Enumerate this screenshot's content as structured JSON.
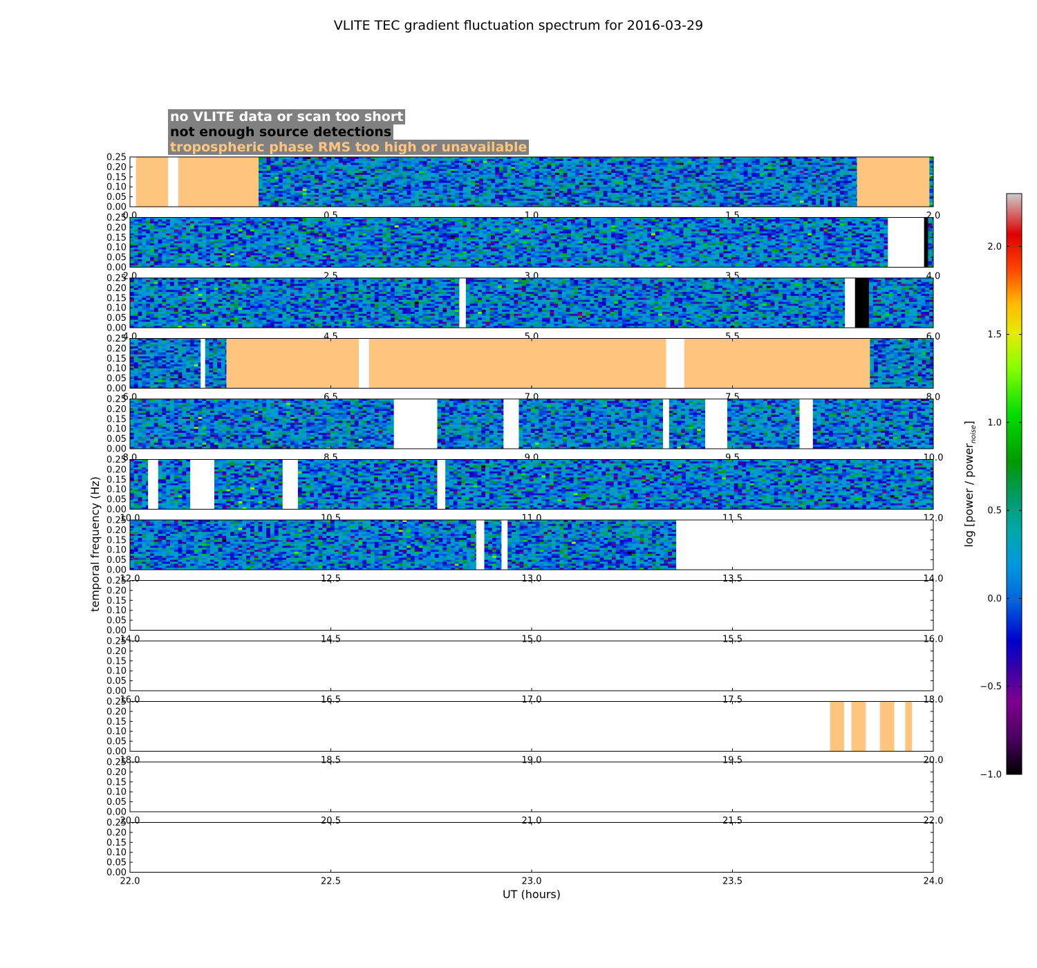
{
  "chart_data": {
    "type": "heatmap",
    "title": "VLITE TEC gradient fluctuation spectrum for 2016-03-29",
    "xlabel": "UT (hours)",
    "ylabel": "temporal frequency (Hz)",
    "ylim": [
      0.0,
      0.25
    ],
    "yticks": [
      "0.00",
      "0.05",
      "0.10",
      "0.15",
      "0.20",
      "0.25"
    ],
    "hours_per_panel": 2,
    "panels": [
      {
        "xlim": [
          0.0,
          2.0
        ],
        "xticks": [
          "0.0",
          "0.5",
          "1.0",
          "1.5",
          "2.0"
        ],
        "data_ranges": [
          [
            0.32,
            1.81
          ],
          [
            1.99,
            2.0
          ]
        ],
        "flags": [
          {
            "category": "no_data",
            "start": 0.0,
            "end": 0.015
          },
          {
            "category": "tropo",
            "start": 0.015,
            "end": 0.095
          },
          {
            "category": "no_data",
            "start": 0.095,
            "end": 0.12
          },
          {
            "category": "tropo",
            "start": 0.12,
            "end": 0.32
          },
          {
            "category": "tropo",
            "start": 1.81,
            "end": 1.99
          }
        ]
      },
      {
        "xlim": [
          2.0,
          4.0
        ],
        "xticks": [
          "2.0",
          "2.5",
          "3.0",
          "3.5",
          "4.0"
        ],
        "data_ranges": [
          [
            2.0,
            3.887
          ],
          [
            3.987,
            4.0
          ]
        ],
        "flags": [
          {
            "category": "no_data",
            "start": 3.887,
            "end": 3.977
          },
          {
            "category": "few_sources",
            "start": 3.977,
            "end": 3.987
          }
        ]
      },
      {
        "xlim": [
          4.0,
          6.0
        ],
        "xticks": [
          "4.0",
          "4.5",
          "5.0",
          "5.5",
          "6.0"
        ],
        "data_ranges": [
          [
            4.0,
            4.82
          ],
          [
            4.836,
            5.78
          ],
          [
            5.84,
            6.0
          ]
        ],
        "flags": [
          {
            "category": "no_data",
            "start": 4.82,
            "end": 4.836
          },
          {
            "category": "no_data",
            "start": 5.78,
            "end": 5.805
          },
          {
            "category": "few_sources",
            "start": 5.805,
            "end": 5.84
          }
        ]
      },
      {
        "xlim": [
          6.0,
          8.0
        ],
        "xticks": [
          "6.0",
          "6.5",
          "7.0",
          "7.5",
          "8.0"
        ],
        "data_ranges": [
          [
            6.0,
            6.176
          ],
          [
            6.187,
            6.24
          ],
          [
            7.842,
            8.0
          ]
        ],
        "flags": [
          {
            "category": "no_data",
            "start": 6.176,
            "end": 6.187
          },
          {
            "category": "tropo",
            "start": 6.24,
            "end": 6.57
          },
          {
            "category": "no_data",
            "start": 6.57,
            "end": 6.595
          },
          {
            "category": "tropo",
            "start": 6.595,
            "end": 7.335
          },
          {
            "category": "no_data",
            "start": 7.335,
            "end": 7.38
          },
          {
            "category": "tropo",
            "start": 7.38,
            "end": 7.842
          }
        ]
      },
      {
        "xlim": [
          8.0,
          10.0
        ],
        "xticks": [
          "8.0",
          "8.5",
          "9.0",
          "9.5",
          "10.0"
        ],
        "data_ranges": [
          [
            8.0,
            8.657
          ],
          [
            8.765,
            8.93
          ],
          [
            8.968,
            9.327
          ],
          [
            9.342,
            9.432
          ],
          [
            9.487,
            9.667
          ],
          [
            9.7,
            10.0
          ]
        ],
        "flags": [
          {
            "category": "no_data",
            "start": 8.657,
            "end": 8.765
          },
          {
            "category": "no_data",
            "start": 8.93,
            "end": 8.968
          },
          {
            "category": "no_data",
            "start": 9.327,
            "end": 9.342
          },
          {
            "category": "no_data",
            "start": 9.432,
            "end": 9.487
          },
          {
            "category": "no_data",
            "start": 9.667,
            "end": 9.7
          }
        ]
      },
      {
        "xlim": [
          10.0,
          12.0
        ],
        "xticks": [
          "10.0",
          "10.5",
          "11.0",
          "11.5",
          "12.0"
        ],
        "data_ranges": [
          [
            10.0,
            10.045
          ],
          [
            10.07,
            10.15
          ],
          [
            10.21,
            10.38
          ],
          [
            10.418,
            10.765
          ],
          [
            10.785,
            12.0
          ]
        ],
        "flags": [
          {
            "category": "no_data",
            "start": 10.045,
            "end": 10.07
          },
          {
            "category": "no_data",
            "start": 10.15,
            "end": 10.21
          },
          {
            "category": "no_data",
            "start": 10.38,
            "end": 10.418
          },
          {
            "category": "no_data",
            "start": 10.765,
            "end": 10.785
          }
        ]
      },
      {
        "xlim": [
          12.0,
          14.0
        ],
        "xticks": [
          "12.0",
          "12.5",
          "13.0",
          "13.5",
          "14.0"
        ],
        "data_ranges": [
          [
            12.0,
            12.862
          ],
          [
            12.882,
            12.925
          ],
          [
            12.94,
            13.36
          ]
        ],
        "flags": [
          {
            "category": "no_data",
            "start": 12.862,
            "end": 12.882
          },
          {
            "category": "no_data",
            "start": 12.925,
            "end": 12.94
          },
          {
            "category": "no_data",
            "start": 13.36,
            "end": 14.0
          }
        ]
      },
      {
        "xlim": [
          14.0,
          16.0
        ],
        "xticks": [
          "14.0",
          "14.5",
          "15.0",
          "15.5",
          "16.0"
        ],
        "data_ranges": [],
        "flags": []
      },
      {
        "xlim": [
          16.0,
          18.0
        ],
        "xticks": [
          "16.0",
          "16.5",
          "17.0",
          "17.5",
          "18.0"
        ],
        "data_ranges": [],
        "flags": []
      },
      {
        "xlim": [
          18.0,
          20.0
        ],
        "xticks": [
          "18.0",
          "18.5",
          "19.0",
          "19.5",
          "20.0"
        ],
        "data_ranges": [],
        "flags": [
          {
            "category": "tropo",
            "start": 19.743,
            "end": 19.778
          },
          {
            "category": "tropo",
            "start": 19.796,
            "end": 19.832
          },
          {
            "category": "tropo",
            "start": 19.867,
            "end": 19.903
          },
          {
            "category": "tropo",
            "start": 19.93,
            "end": 19.947
          }
        ]
      },
      {
        "xlim": [
          20.0,
          22.0
        ],
        "xticks": [
          "20.0",
          "20.5",
          "21.0",
          "21.5",
          "22.0"
        ],
        "data_ranges": [],
        "flags": []
      },
      {
        "xlim": [
          22.0,
          24.0
        ],
        "xticks": [
          "22.0",
          "22.5",
          "23.0",
          "23.5",
          "24.0"
        ],
        "data_ranges": [],
        "flags": []
      }
    ],
    "legend": {
      "placement": "top-left",
      "entries": [
        {
          "category": "no_data",
          "label": "no VLITE data or scan too short",
          "color": "#ffffff"
        },
        {
          "category": "few_sources",
          "label": "not enough source detections",
          "color": "#000000"
        },
        {
          "category": "tropo",
          "label": "tropospheric phase RMS too high or unavailable",
          "color": "#fdc57e"
        }
      ],
      "background": "#808080"
    },
    "colorbar": {
      "label": "log [power / power",
      "label_subscript": "noise",
      "label_end": "]",
      "min": -1.0,
      "max": 2.3,
      "ticks": [
        "−1.0",
        "−0.5",
        "0.0",
        "0.5",
        "1.0",
        "1.5",
        "2.0"
      ],
      "colormap": "nipy_spectral",
      "typical_data_range": [
        -0.8,
        1.2
      ]
    }
  }
}
